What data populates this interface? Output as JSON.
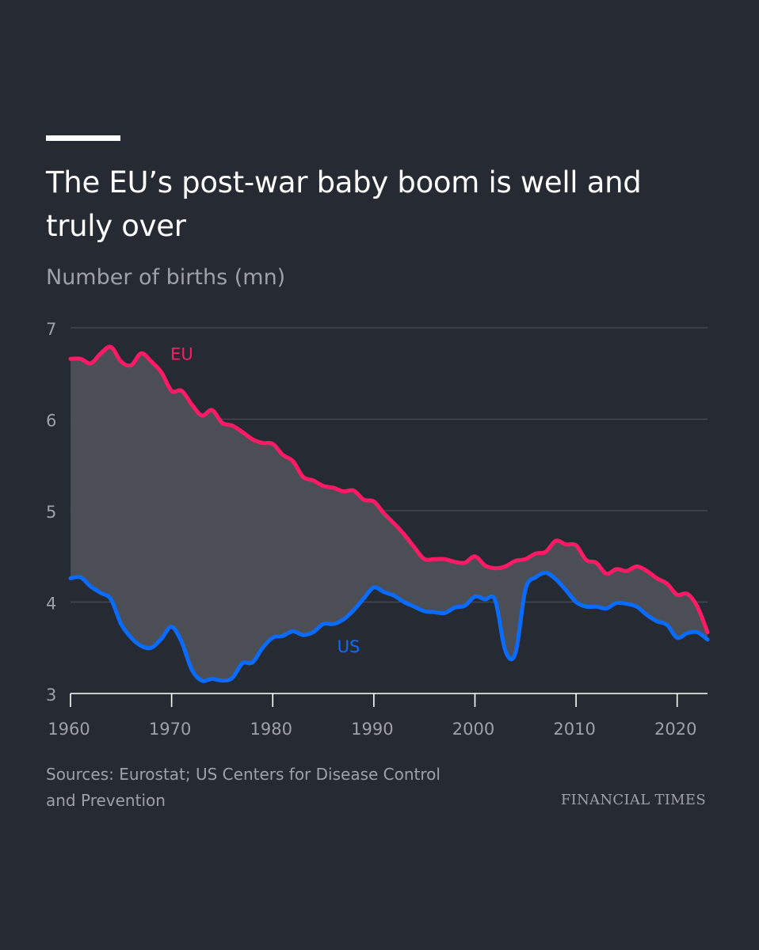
{
  "header": {
    "title": "The EU’s post-war baby boom is well and truly over",
    "subtitle": "Number of births (mn)"
  },
  "footer": {
    "source": "Sources: Eurostat; US Centers for Disease Control and Prevention",
    "brand": "FINANCIAL TIMES"
  },
  "colors": {
    "background": "#262a33",
    "eu": "#ff1a66",
    "us": "#0a6cff",
    "gap_fill": "#4e5059",
    "grid": "#4a4d56",
    "axis": "#ffffff",
    "muted_text": "#9ea1aa"
  },
  "chart_data": {
    "type": "line",
    "title": "The EU’s post-war baby boom is well and truly over",
    "ylabel": "Number of births (mn)",
    "xlabel": "",
    "xlim": [
      1960,
      2023
    ],
    "ylim": [
      3,
      7
    ],
    "x_ticks": [
      1960,
      1970,
      1980,
      1990,
      2000,
      2010,
      2020
    ],
    "y_ticks": [
      3,
      4,
      5,
      6,
      7
    ],
    "grid": true,
    "fill_between_series": true,
    "x": [
      1960,
      1961,
      1962,
      1963,
      1964,
      1965,
      1966,
      1967,
      1968,
      1969,
      1970,
      1971,
      1972,
      1973,
      1974,
      1975,
      1976,
      1977,
      1978,
      1979,
      1980,
      1981,
      1982,
      1983,
      1984,
      1985,
      1986,
      1987,
      1988,
      1989,
      1990,
      1991,
      1992,
      1993,
      1994,
      1995,
      1996,
      1997,
      1998,
      1999,
      2000,
      2001,
      2002,
      2003,
      2004,
      2005,
      2006,
      2007,
      2008,
      2009,
      2010,
      2011,
      2012,
      2013,
      2014,
      2015,
      2016,
      2017,
      2018,
      2019,
      2020,
      2021,
      2022,
      2023
    ],
    "series": [
      {
        "name": "EU",
        "label": "EU",
        "label_year": 1971,
        "label_value": 6.65,
        "values": [
          6.66,
          6.66,
          6.61,
          6.72,
          6.79,
          6.63,
          6.59,
          6.72,
          6.63,
          6.51,
          6.31,
          6.31,
          6.16,
          6.04,
          6.1,
          5.96,
          5.93,
          5.86,
          5.78,
          5.74,
          5.73,
          5.61,
          5.54,
          5.37,
          5.33,
          5.27,
          5.25,
          5.21,
          5.22,
          5.12,
          5.1,
          4.97,
          4.86,
          4.74,
          4.6,
          4.47,
          4.47,
          4.47,
          4.44,
          4.43,
          4.5,
          4.4,
          4.37,
          4.39,
          4.45,
          4.47,
          4.53,
          4.55,
          4.67,
          4.63,
          4.62,
          4.46,
          4.43,
          4.31,
          4.36,
          4.34,
          4.39,
          4.34,
          4.26,
          4.2,
          4.08,
          4.09,
          3.95,
          3.67
        ]
      },
      {
        "name": "US",
        "label": "US",
        "label_year": 1987.5,
        "label_value": 3.45,
        "values": [
          4.26,
          4.27,
          4.17,
          4.1,
          4.03,
          3.76,
          3.61,
          3.52,
          3.5,
          3.6,
          3.73,
          3.56,
          3.26,
          3.14,
          3.16,
          3.14,
          3.17,
          3.33,
          3.34,
          3.5,
          3.61,
          3.63,
          3.68,
          3.64,
          3.67,
          3.76,
          3.76,
          3.81,
          3.91,
          4.04,
          4.16,
          4.11,
          4.07,
          4.0,
          3.95,
          3.9,
          3.89,
          3.88,
          3.94,
          3.96,
          4.06,
          4.03,
          4.02,
          3.47,
          3.44,
          4.14,
          4.27,
          4.32,
          4.25,
          4.13,
          4.0,
          3.95,
          3.95,
          3.93,
          3.99,
          3.98,
          3.95,
          3.86,
          3.79,
          3.75,
          3.61,
          3.66,
          3.67,
          3.59
        ]
      }
    ]
  }
}
